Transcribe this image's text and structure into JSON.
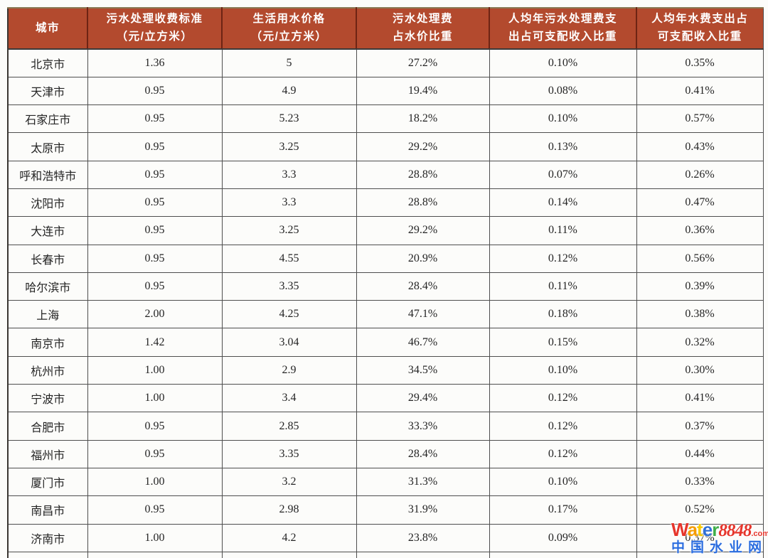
{
  "table": {
    "headers": [
      "城市",
      "污水处理收费标准\n（元/立方米）",
      "生活用水价格\n（元/立方米）",
      "污水处理费\n占水价比重",
      "人均年污水处理费支\n出占可支配收入比重",
      "人均年水费支出占\n可支配收入比重"
    ],
    "rows": [
      {
        "city": "北京市",
        "values": [
          "1.36",
          "5",
          "27.2%",
          "0.10%",
          "0.35%"
        ]
      },
      {
        "city": "天津市",
        "values": [
          "0.95",
          "4.9",
          "19.4%",
          "0.08%",
          "0.41%"
        ]
      },
      {
        "city": "石家庄市",
        "values": [
          "0.95",
          "5.23",
          "18.2%",
          "0.10%",
          "0.57%"
        ]
      },
      {
        "city": "太原市",
        "values": [
          "0.95",
          "3.25",
          "29.2%",
          "0.13%",
          "0.43%"
        ]
      },
      {
        "city": "呼和浩特市",
        "values": [
          "0.95",
          "3.3",
          "28.8%",
          "0.07%",
          "0.26%"
        ]
      },
      {
        "city": "沈阳市",
        "values": [
          "0.95",
          "3.3",
          "28.8%",
          "0.14%",
          "0.47%"
        ]
      },
      {
        "city": "大连市",
        "values": [
          "0.95",
          "3.25",
          "29.2%",
          "0.11%",
          "0.36%"
        ]
      },
      {
        "city": "长春市",
        "values": [
          "0.95",
          "4.55",
          "20.9%",
          "0.12%",
          "0.56%"
        ]
      },
      {
        "city": "哈尔滨市",
        "values": [
          "0.95",
          "3.35",
          "28.4%",
          "0.11%",
          "0.39%"
        ]
      },
      {
        "city": "上海",
        "values": [
          "2.00",
          "4.25",
          "47.1%",
          "0.18%",
          "0.38%"
        ]
      },
      {
        "city": "南京市",
        "values": [
          "1.42",
          "3.04",
          "46.7%",
          "0.15%",
          "0.32%"
        ]
      },
      {
        "city": "杭州市",
        "values": [
          "1.00",
          "2.9",
          "34.5%",
          "0.10%",
          "0.30%"
        ]
      },
      {
        "city": "宁波市",
        "values": [
          "1.00",
          "3.4",
          "29.4%",
          "0.12%",
          "0.41%"
        ]
      },
      {
        "city": "合肥市",
        "values": [
          "0.95",
          "2.85",
          "33.3%",
          "0.12%",
          "0.37%"
        ]
      },
      {
        "city": "福州市",
        "values": [
          "0.95",
          "3.35",
          "28.4%",
          "0.12%",
          "0.44%"
        ]
      },
      {
        "city": "厦门市",
        "values": [
          "1.00",
          "3.2",
          "31.3%",
          "0.10%",
          "0.33%"
        ]
      },
      {
        "city": "南昌市",
        "values": [
          "0.95",
          "2.98",
          "31.9%",
          "0.17%",
          "0.52%"
        ]
      },
      {
        "city": "济南市",
        "values": [
          "1.00",
          "4.2",
          "23.8%",
          "0.09%",
          "0.37%"
        ]
      }
    ]
  },
  "colors": {
    "header_bg": "#b34a2e",
    "header_divider": "#6e2414",
    "header_text": "#ffffff",
    "grid_line": "#4e4e4e",
    "body_text": "#242424",
    "watermark_blue": "#2b6ddf"
  },
  "watermark": {
    "brand_letters": [
      {
        "char": "W",
        "color": "#e6352b"
      },
      {
        "char": "a",
        "color": "#f59c00"
      },
      {
        "char": "t",
        "color": "#f8c800"
      },
      {
        "char": "e",
        "color": "#2f6fd6"
      },
      {
        "char": "r",
        "color": "#3fae49"
      }
    ],
    "brand_number": "8848",
    "brand_number_color": "#e6352b",
    "brand_tld": ".com",
    "brand_tld_color": "#e6352b",
    "subtitle": "中国水业网",
    "subtitle_color": "#2b6ddf"
  }
}
